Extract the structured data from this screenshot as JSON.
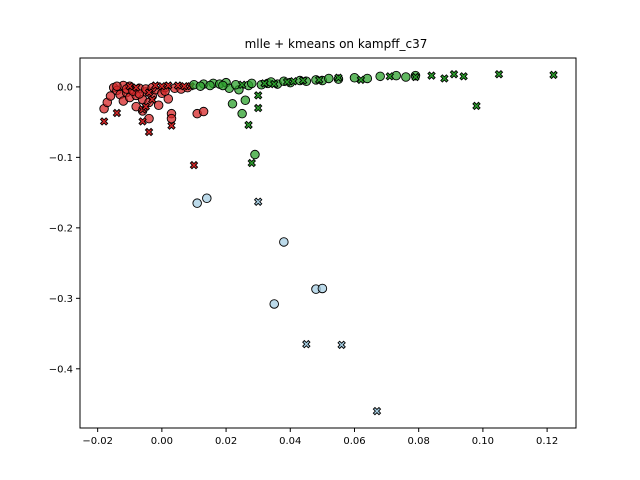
{
  "chart_data": {
    "type": "scatter",
    "title": "mlle + kmeans on kampff_c37",
    "xlabel": "",
    "ylabel": "",
    "xlim": [
      -0.0255,
      0.129
    ],
    "ylim": [
      -0.484,
      0.041
    ],
    "grid": false,
    "legend": "none",
    "x_ticks": [
      -0.02,
      0.0,
      0.02,
      0.04,
      0.06,
      0.08,
      0.1,
      0.12
    ],
    "x_tick_labels": [
      "−0.02",
      "0.00",
      "0.02",
      "0.04",
      "0.06",
      "0.08",
      "0.10",
      "0.12"
    ],
    "y_ticks": [
      0.0,
      -0.1,
      -0.2,
      -0.3,
      -0.4
    ],
    "y_tick_labels": [
      "0.0",
      "−0.1",
      "−0.2",
      "−0.3",
      "−0.4"
    ],
    "series": [
      {
        "color": "#d62728",
        "circles": [
          [
            -0.018,
            -0.031
          ],
          [
            -0.017,
            -0.022
          ],
          [
            -0.016,
            -0.013
          ],
          [
            -0.015,
            -0.001
          ],
          [
            -0.014,
            -0.005
          ],
          [
            -0.013,
            -0.011
          ],
          [
            -0.012,
            -0.02
          ],
          [
            -0.012,
            0.002
          ],
          [
            -0.011,
            -0.008
          ],
          [
            -0.01,
            -0.015
          ],
          [
            -0.01,
            0.001
          ],
          [
            -0.009,
            -0.004
          ],
          [
            -0.008,
            -0.028
          ],
          [
            -0.008,
            -0.012
          ],
          [
            -0.007,
            -0.002
          ],
          [
            -0.006,
            -0.018
          ],
          [
            -0.006,
            -0.034
          ],
          [
            -0.005,
            -0.007
          ],
          [
            -0.004,
            -0.045
          ],
          [
            -0.004,
            -0.022
          ],
          [
            -0.003,
            -0.013
          ],
          [
            -0.002,
            -0.004
          ],
          [
            -0.001,
            -0.026
          ],
          [
            0.0,
            -0.009
          ],
          [
            0.001,
            -0.001
          ],
          [
            0.002,
            -0.017
          ],
          [
            0.003,
            -0.038
          ],
          [
            0.003,
            -0.045
          ],
          [
            0.004,
            -0.002
          ],
          [
            0.006,
            -0.003
          ],
          [
            0.008,
            -0.001
          ],
          [
            0.011,
            -0.038
          ],
          [
            0.013,
            -0.035
          ],
          [
            -0.014,
            0.001
          ],
          [
            -0.011,
            -0.003
          ],
          [
            -0.009,
            -0.006
          ],
          [
            -0.007,
            -0.01
          ],
          [
            -0.005,
            -0.003
          ],
          [
            -0.003,
            -0.001
          ],
          [
            0.001,
            -0.006
          ]
        ],
        "crosses": [
          [
            -0.018,
            -0.049
          ],
          [
            -0.014,
            -0.037
          ],
          [
            -0.01,
            0.001
          ],
          [
            -0.008,
            -0.001
          ],
          [
            -0.006,
            -0.032
          ],
          [
            -0.005,
            -0.028
          ],
          [
            -0.004,
            -0.064
          ],
          [
            -0.003,
            -0.018
          ],
          [
            -0.002,
            0.002
          ],
          [
            0.0,
            0.001
          ],
          [
            0.002,
            0.002
          ],
          [
            0.003,
            -0.055
          ],
          [
            0.005,
            0.002
          ],
          [
            0.007,
            0.001
          ],
          [
            0.009,
            0.001
          ],
          [
            0.01,
            -0.111
          ],
          [
            -0.006,
            -0.049
          ],
          [
            -0.004,
            -0.008
          ]
        ]
      },
      {
        "color": "#2ca02c",
        "circles": [
          [
            0.01,
            0.003
          ],
          [
            0.013,
            0.004
          ],
          [
            0.016,
            0.005
          ],
          [
            0.018,
            0.004
          ],
          [
            0.02,
            0.006
          ],
          [
            0.021,
            -0.002
          ],
          [
            0.022,
            -0.024
          ],
          [
            0.024,
            -0.004
          ],
          [
            0.025,
            -0.038
          ],
          [
            0.026,
            -0.019
          ],
          [
            0.027,
            0.002
          ],
          [
            0.029,
            -0.096
          ],
          [
            0.031,
            0.003
          ],
          [
            0.033,
            0.005
          ],
          [
            0.036,
            0.004
          ],
          [
            0.04,
            0.006
          ],
          [
            0.045,
            0.008
          ],
          [
            0.05,
            0.009
          ],
          [
            0.055,
            0.011
          ],
          [
            0.06,
            0.013
          ],
          [
            0.064,
            0.012
          ],
          [
            0.068,
            0.015
          ],
          [
            0.073,
            0.016
          ],
          [
            0.076,
            0.014
          ],
          [
            0.079,
            0.016
          ],
          [
            0.012,
            0.001
          ],
          [
            0.015,
            0.002
          ],
          [
            0.019,
            0.002
          ],
          [
            0.023,
            0.003
          ],
          [
            0.028,
            0.005
          ],
          [
            0.034,
            0.007
          ],
          [
            0.038,
            0.008
          ],
          [
            0.043,
            0.009
          ],
          [
            0.048,
            0.01
          ],
          [
            0.052,
            0.012
          ]
        ],
        "crosses": [
          [
            0.027,
            -0.054
          ],
          [
            0.028,
            -0.108
          ],
          [
            0.03,
            -0.03
          ],
          [
            0.03,
            -0.012
          ],
          [
            0.032,
            0.005
          ],
          [
            0.035,
            0.004
          ],
          [
            0.039,
            0.007
          ],
          [
            0.044,
            0.009
          ],
          [
            0.049,
            0.01
          ],
          [
            0.055,
            0.013
          ],
          [
            0.062,
            0.01
          ],
          [
            0.071,
            0.015
          ],
          [
            0.079,
            0.014
          ],
          [
            0.084,
            0.016
          ],
          [
            0.088,
            0.012
          ],
          [
            0.091,
            0.018
          ],
          [
            0.094,
            0.015
          ],
          [
            0.098,
            -0.027
          ],
          [
            0.105,
            0.018
          ],
          [
            0.122,
            0.017
          ],
          [
            0.025,
            0.003
          ],
          [
            0.041,
            0.008
          ]
        ]
      },
      {
        "color": "#a6cee3",
        "circles": [
          [
            0.011,
            -0.165
          ],
          [
            0.014,
            -0.158
          ],
          [
            0.038,
            -0.22
          ],
          [
            0.035,
            -0.308
          ],
          [
            0.048,
            -0.287
          ],
          [
            0.05,
            -0.286
          ]
        ],
        "crosses": [
          [
            0.03,
            -0.163
          ],
          [
            0.045,
            -0.365
          ],
          [
            0.056,
            -0.366
          ],
          [
            0.067,
            -0.46
          ]
        ]
      }
    ]
  }
}
